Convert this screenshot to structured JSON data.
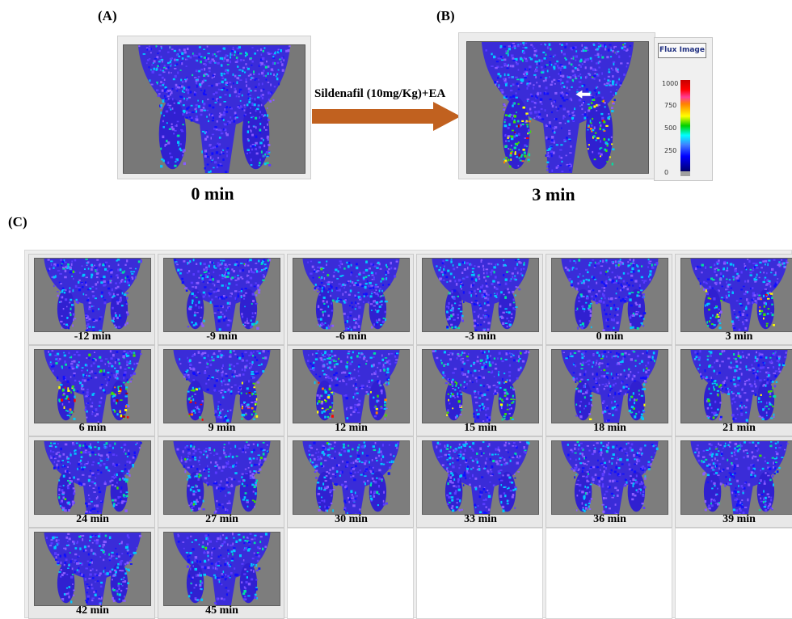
{
  "panels": {
    "a_label": "(A)",
    "b_label": "(B)",
    "c_label": "(C)",
    "a_caption": "0 min",
    "b_caption": "3 min"
  },
  "treatment_label": "Sildenafil (10mg/Kg)+EA",
  "flux": {
    "title": "Flux Image",
    "ticks": [
      "1000",
      "750",
      "500",
      "250",
      "0"
    ]
  },
  "timepoints": [
    {
      "label": "-12 min",
      "intensity": 0.25
    },
    {
      "label": "-9 min",
      "intensity": 0.25
    },
    {
      "label": "-6 min",
      "intensity": 0.25
    },
    {
      "label": "-3 min",
      "intensity": 0.25
    },
    {
      "label": "0 min",
      "intensity": 0.25
    },
    {
      "label": "3 min",
      "intensity": 0.8
    },
    {
      "label": "6 min",
      "intensity": 0.95
    },
    {
      "label": "9 min",
      "intensity": 0.9
    },
    {
      "label": "12 min",
      "intensity": 0.75
    },
    {
      "label": "15 min",
      "intensity": 0.6
    },
    {
      "label": "18 min",
      "intensity": 0.5
    },
    {
      "label": "21 min",
      "intensity": 0.42
    },
    {
      "label": "24 min",
      "intensity": 0.32
    },
    {
      "label": "27 min",
      "intensity": 0.3
    },
    {
      "label": "30 min",
      "intensity": 0.22
    },
    {
      "label": "33 min",
      "intensity": 0.2
    },
    {
      "label": "36 min",
      "intensity": 0.2
    },
    {
      "label": "39 min",
      "intensity": 0.2
    },
    {
      "label": "42 min",
      "intensity": 0.2
    },
    {
      "label": "45 min",
      "intensity": 0.2
    }
  ],
  "empty_cells": 4
}
